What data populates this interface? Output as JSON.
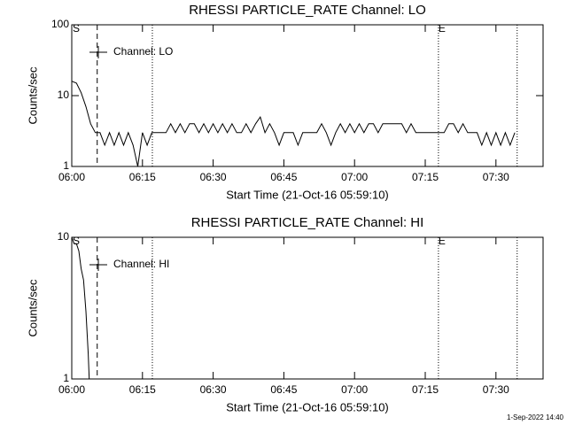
{
  "chart_data": [
    {
      "type": "line",
      "title": "RHESSI PARTICLE_RATE Channel: LO",
      "ylabel": "Counts/sec",
      "xlabel": "Start Time (21-Oct-16 05:59:10)",
      "x": [
        0,
        1,
        2,
        3,
        4,
        5,
        6,
        7,
        8,
        9,
        10,
        11,
        12,
        13,
        14,
        15,
        16,
        17,
        18,
        19,
        20,
        21,
        22,
        23,
        24,
        25,
        26,
        27,
        28,
        29,
        30,
        31,
        32,
        33,
        34,
        35,
        36,
        37,
        38,
        39,
        40,
        41,
        42,
        43,
        44,
        45,
        46,
        47,
        48,
        49,
        50,
        51,
        52,
        53,
        54,
        55,
        56,
        57,
        58,
        59,
        60,
        61,
        62,
        63,
        64,
        65,
        66,
        67,
        68,
        69,
        70,
        71,
        72,
        73,
        74,
        75,
        76,
        77,
        78,
        79,
        80,
        81,
        82,
        83,
        84,
        85,
        86,
        87,
        88,
        89,
        90,
        91,
        92,
        93,
        94
      ],
      "series": [
        {
          "name": "Channel: LO",
          "color": "#000000",
          "values": [
            16,
            15,
            11,
            7,
            4,
            3,
            3,
            2,
            3,
            2,
            3,
            2,
            3,
            2,
            1,
            3,
            2,
            3,
            3,
            3,
            3,
            4,
            3,
            4,
            3,
            4,
            4,
            3,
            4,
            3,
            4,
            3,
            4,
            3,
            4,
            3,
            3,
            4,
            3,
            4,
            5,
            3,
            4,
            3,
            2,
            3,
            3,
            3,
            2,
            3,
            3,
            3,
            3,
            4,
            3,
            2,
            3,
            4,
            3,
            4,
            3,
            4,
            3,
            4,
            4,
            3,
            4,
            4,
            4,
            4,
            4,
            3,
            4,
            3,
            3,
            3,
            3,
            3,
            3,
            3,
            4,
            4,
            3,
            4,
            3,
            3,
            3,
            2,
            3,
            2,
            3,
            2,
            3,
            2,
            3
          ]
        }
      ],
      "xlim": [
        0,
        100
      ],
      "xticks": [
        {
          "value": 0,
          "label": "06:00"
        },
        {
          "value": 15,
          "label": "06:15"
        },
        {
          "value": 30,
          "label": "06:30"
        },
        {
          "value": 45,
          "label": "06:45"
        },
        {
          "value": 60,
          "label": "07:00"
        },
        {
          "value": 75,
          "label": "07:15"
        },
        {
          "value": 90,
          "label": "07:30"
        }
      ],
      "ylim": [
        1,
        100
      ],
      "yticks": [
        1,
        10,
        100
      ],
      "log_y": true,
      "vlines": [
        {
          "x": 5.4,
          "style": "dashed"
        },
        {
          "x": 17.1,
          "style": "dotted"
        },
        {
          "x": 77.8,
          "style": "dotted"
        },
        {
          "x": 94.5,
          "style": "dotted"
        }
      ],
      "start_label": "S",
      "end_label": "E"
    },
    {
      "type": "line",
      "title": "RHESSI PARTICLE_RATE Channel: HI",
      "ylabel": "Counts/sec",
      "xlabel": "Start Time (21-Oct-16 05:59:10)",
      "x": [
        0,
        0.5,
        1,
        1.5,
        2,
        2.5,
        3,
        3.5,
        3.7
      ],
      "series": [
        {
          "name": "Channel: HI",
          "color": "#000000",
          "values": [
            10,
            9,
            9,
            8,
            6,
            5,
            3,
            1.5,
            1
          ]
        }
      ],
      "xlim": [
        0,
        100
      ],
      "xticks": [
        {
          "value": 0,
          "label": "06:00"
        },
        {
          "value": 15,
          "label": "06:15"
        },
        {
          "value": 30,
          "label": "06:30"
        },
        {
          "value": 45,
          "label": "06:45"
        },
        {
          "value": 60,
          "label": "07:00"
        },
        {
          "value": 75,
          "label": "07:15"
        },
        {
          "value": 90,
          "label": "07:30"
        }
      ],
      "ylim": [
        1,
        10
      ],
      "yticks": [
        1,
        10
      ],
      "log_y": true,
      "vlines": [
        {
          "x": 5.4,
          "style": "dashed"
        },
        {
          "x": 17.1,
          "style": "dotted"
        },
        {
          "x": 77.8,
          "style": "dotted"
        },
        {
          "x": 94.5,
          "style": "dotted"
        }
      ],
      "start_label": "S",
      "end_label": "E"
    }
  ],
  "footer": "1-Sep-2022 14:40"
}
